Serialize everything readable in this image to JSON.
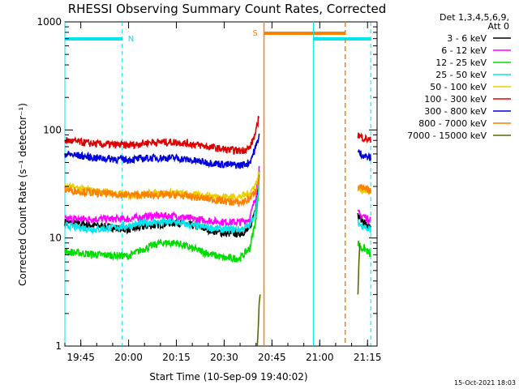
{
  "chart_data": {
    "type": "line",
    "title": "RHESSI Observing Summary Count Rates, Corrected",
    "xlabel": "Start Time (10-Sep-09 19:40:02)",
    "ylabel": "Corrected Count Rate (s⁻¹ detector⁻¹)",
    "x_unit": "minutes since 19:40:02",
    "xlim": [
      0,
      98
    ],
    "ylim": [
      1,
      1000
    ],
    "yscale": "log",
    "x_ticks": [
      {
        "minute": 5,
        "label": "19:45"
      },
      {
        "minute": 20,
        "label": "20:00"
      },
      {
        "minute": 35,
        "label": "20:15"
      },
      {
        "minute": 50,
        "label": "20:30"
      },
      {
        "minute": 65,
        "label": "20:45"
      },
      {
        "minute": 80,
        "label": "21:00"
      },
      {
        "minute": 95,
        "label": "21:15"
      }
    ],
    "y_ticks": [
      {
        "value": 1,
        "label": "1"
      },
      {
        "value": 10,
        "label": "10"
      },
      {
        "value": 100,
        "label": "100"
      },
      {
        "value": 1000,
        "label": "1000"
      }
    ],
    "legend": {
      "header": [
        "Det 1,3,4,5,6,9,",
        "Att 0"
      ],
      "position": "right"
    },
    "flags": {
      "night_label": "N",
      "saa_label": "S",
      "night_color": "#00e5ee",
      "saa_color": "#ff7f00",
      "night_bars": [
        [
          0,
          18
        ],
        [
          78,
          96
        ]
      ],
      "saa_bars": [
        [
          62.5,
          88
        ]
      ],
      "night_lines_solid": [
        0,
        78
      ],
      "night_lines_dashed": [
        18,
        96
      ],
      "saa_lines_solid": [
        62.5
      ],
      "saa_lines_dashed": [
        88
      ]
    },
    "series": [
      {
        "name": "3 - 6 keV",
        "color": "#000000",
        "segments": [
          {
            "x": [
              0,
              10,
              20,
              27,
              35,
              40,
              50,
              55,
              58,
              60,
              61
            ],
            "y": [
              14,
              13,
              12,
              13,
              14,
              13,
              11,
              11,
              12,
              20,
              40
            ]
          },
          {
            "x": [
              92,
              93,
              94,
              95,
              96
            ],
            "y": [
              16,
              15,
              14,
              13,
              12
            ]
          }
        ]
      },
      {
        "name": "6 - 12 keV",
        "color": "#ff00ff",
        "segments": [
          {
            "x": [
              0,
              10,
              20,
              27,
              35,
              40,
              50,
              55,
              58,
              60,
              61
            ],
            "y": [
              15,
              15,
              15,
              16,
              16,
              15,
              14,
              14,
              15,
              25,
              45
            ]
          },
          {
            "x": [
              92,
              93,
              94,
              95,
              96
            ],
            "y": [
              17,
              16,
              16,
              15,
              15
            ]
          }
        ]
      },
      {
        "name": "12 - 25 keV",
        "color": "#00dd00",
        "segments": [
          {
            "x": [
              0,
              10,
              20,
              25,
              30,
              35,
              40,
              50,
              55,
              58,
              60,
              61
            ],
            "y": [
              7.5,
              7,
              6.8,
              8,
              9,
              9,
              8,
              6.5,
              6.5,
              8,
              15,
              35
            ]
          },
          {
            "x": [
              92,
              93,
              94,
              95,
              96
            ],
            "y": [
              9,
              8,
              8,
              7.5,
              7
            ]
          }
        ]
      },
      {
        "name": "25 - 50 keV",
        "color": "#00e5ee",
        "segments": [
          {
            "x": [
              0,
              10,
              20,
              27,
              35,
              40,
              50,
              55,
              58,
              60,
              61
            ],
            "y": [
              13,
              12,
              13,
              14,
              14,
              13,
              12,
              12,
              13,
              18,
              30
            ]
          },
          {
            "x": [
              92,
              93,
              94,
              95,
              96
            ],
            "y": [
              14,
              13,
              13,
              12,
              12
            ]
          }
        ]
      },
      {
        "name": "50 - 100 keV",
        "color": "#e8d000",
        "segments": [
          {
            "x": [
              0,
              10,
              20,
              27,
              35,
              40,
              50,
              55,
              58,
              60,
              61
            ],
            "y": [
              30,
              27,
              25,
              26,
              26,
              25,
              24,
              24,
              26,
              32,
              40
            ]
          },
          {
            "x": [
              92,
              93,
              94,
              95,
              96
            ],
            "y": [
              29,
              28,
              28,
              27,
              27
            ]
          }
        ]
      },
      {
        "name": "100 - 300 keV",
        "color": "#dd0000",
        "segments": [
          {
            "x": [
              0,
              10,
              20,
              27,
              35,
              40,
              50,
              55,
              58,
              60,
              61
            ],
            "y": [
              80,
              74,
              72,
              77,
              77,
              74,
              66,
              64,
              68,
              95,
              140
            ]
          },
          {
            "x": [
              92,
              93,
              94,
              95,
              96
            ],
            "y": [
              90,
              86,
              84,
              82,
              80
            ]
          }
        ]
      },
      {
        "name": "300 - 800 keV",
        "color": "#0000dd",
        "segments": [
          {
            "x": [
              0,
              10,
              20,
              27,
              35,
              40,
              50,
              55,
              58,
              60,
              61
            ],
            "y": [
              60,
              55,
              53,
              55,
              55,
              52,
              48,
              47,
              50,
              70,
              90
            ]
          },
          {
            "x": [
              92,
              93,
              94,
              95,
              96
            ],
            "y": [
              62,
              60,
              58,
              56,
              55
            ]
          }
        ]
      },
      {
        "name": "800 - 7000 keV",
        "color": "#ff7f00",
        "segments": [
          {
            "x": [
              0,
              10,
              20,
              27,
              35,
              40,
              50,
              55,
              58,
              60,
              61
            ],
            "y": [
              28,
              26,
              25,
              25,
              25,
              24,
              22,
              21,
              23,
              28,
              35
            ]
          },
          {
            "x": [
              92,
              93,
              94,
              95,
              96
            ],
            "y": [
              30,
              29,
              28,
              28,
              27
            ]
          }
        ]
      },
      {
        "name": "7000 - 15000 keV",
        "color": "#556b00",
        "segments": [
          {
            "x": [
              60.4,
              60.7,
              61,
              61.3
            ],
            "y": [
              1,
              1.5,
              2.5,
              3
            ]
          },
          {
            "x": [
              92,
              92.3,
              92.6
            ],
            "y": [
              3,
              6,
              9
            ]
          }
        ]
      }
    ]
  },
  "footer": {
    "timestamp": "15-Oct-2021 18:03"
  }
}
